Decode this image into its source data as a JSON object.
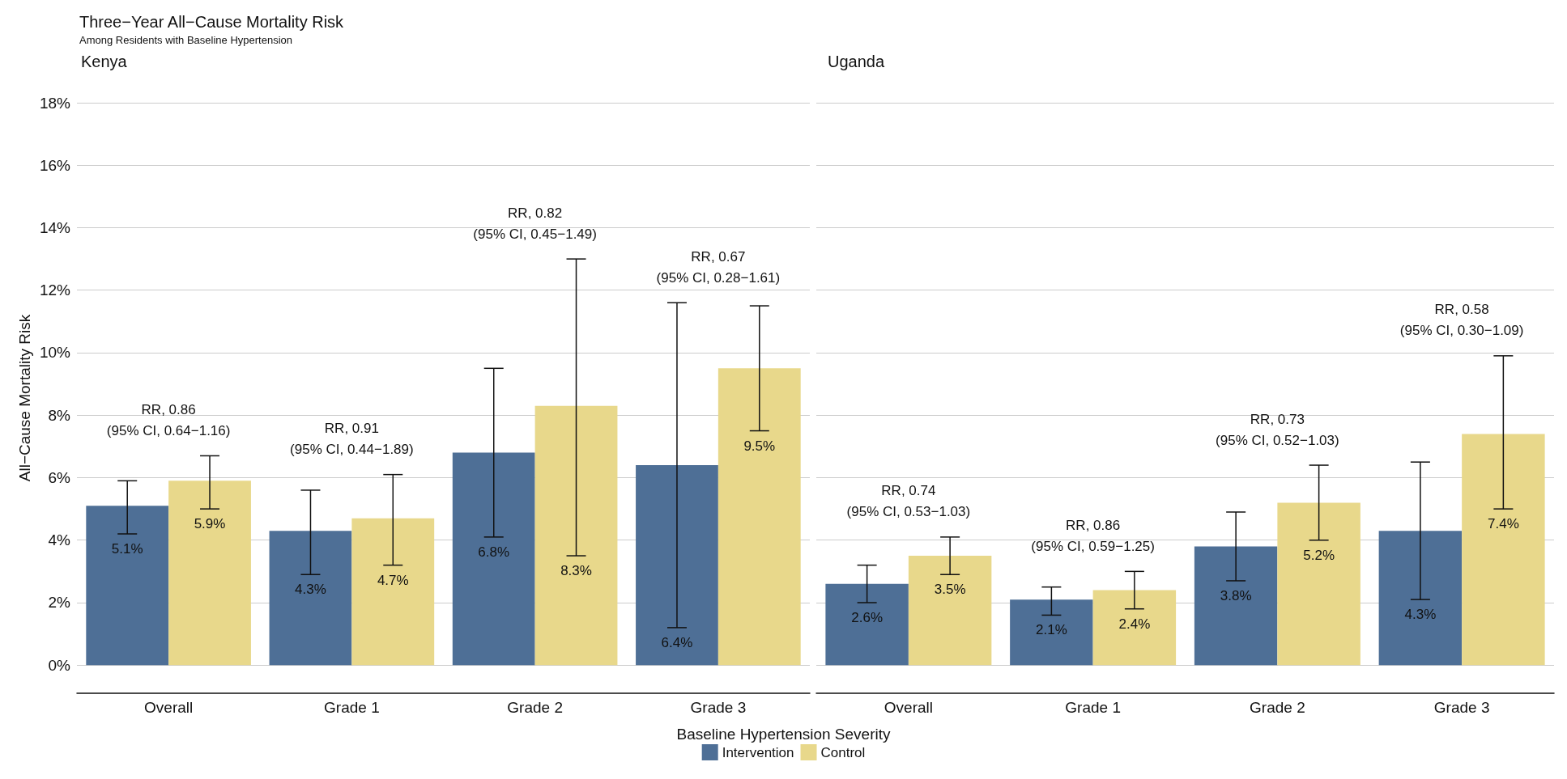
{
  "chart_data": [
    {
      "type": "bar",
      "title": "Three−Year All−Cause Mortality Risk",
      "subtitle": "Among Residents with Baseline Hypertension",
      "ylabel": "All−Cause Mortality Risk",
      "xlabel": "Baseline Hypertension Severity",
      "categories": [
        "Overall",
        "Grade 1",
        "Grade 2",
        "Grade 3"
      ],
      "series": [
        {
          "name": "Intervention",
          "color": "#4e6f96",
          "values": [
            5.1,
            4.3,
            6.8,
            6.4
          ],
          "value_labels": [
            "5.1%",
            "4.3%",
            "6.8%",
            "6.4%"
          ],
          "errors": [
            [
              4.2,
              5.9
            ],
            [
              2.9,
              5.6
            ],
            [
              4.1,
              9.5
            ],
            [
              1.2,
              11.6
            ]
          ]
        },
        {
          "name": "Control",
          "color": "#e8d88b",
          "values": [
            5.9,
            4.7,
            8.3,
            9.5
          ],
          "value_labels": [
            "5.9%",
            "4.7%",
            "8.3%",
            "9.5%"
          ],
          "errors": [
            [
              5.0,
              6.7
            ],
            [
              3.2,
              6.1
            ],
            [
              3.5,
              13.0
            ],
            [
              7.5,
              11.5
            ]
          ]
        }
      ],
      "ylim": [
        -0.9,
        18
      ],
      "yticks": [
        {
          "value": 0,
          "label": "0%"
        },
        {
          "value": 2,
          "label": "2%"
        },
        {
          "value": 4,
          "label": "4%"
        },
        {
          "value": 6,
          "label": "6%"
        },
        {
          "value": 8,
          "label": "8%"
        },
        {
          "value": 10,
          "label": "10%"
        },
        {
          "value": 12,
          "label": "12%"
        },
        {
          "value": 14,
          "label": "14%"
        },
        {
          "value": 16,
          "label": "16%"
        },
        {
          "value": 18,
          "label": "18%"
        }
      ],
      "grid": "y",
      "legend": "bottom",
      "annotations": [
        "Kenya",
        "RR, 0.86\n(95% CI, 0.64−1.16)",
        "RR, 0.91\n(95% CI, 0.44−1.89)",
        "RR, 0.82\n(95% CI, 0.45−1.49)",
        "RR, 0.67\n(95% CI, 0.28−1.61)"
      ]
    },
    {
      "type": "bar",
      "categories": [
        "Overall",
        "Grade 1",
        "Grade 2",
        "Grade 3"
      ],
      "series": [
        {
          "color": "#4e6f96",
          "values": [
            2.6,
            2.1,
            3.8,
            4.3
          ],
          "value_labels": [
            "2.6%",
            "2.1%",
            "3.8%",
            "4.3%"
          ],
          "errors": [
            [
              2.0,
              3.2
            ],
            [
              1.6,
              2.5
            ],
            [
              2.7,
              4.9
            ],
            [
              2.1,
              6.5
            ]
          ]
        },
        {
          "color": "#e8d88b",
          "values": [
            3.5,
            2.4,
            5.2,
            7.4
          ],
          "value_labels": [
            "3.5%",
            "2.4%",
            "5.2%",
            "7.4%"
          ],
          "errors": [
            [
              2.9,
              4.1
            ],
            [
              1.8,
              3.0
            ],
            [
              4.0,
              6.4
            ],
            [
              5.0,
              9.9
            ]
          ]
        }
      ],
      "ylim": [
        -0.9,
        18
      ],
      "yticks": [
        0,
        2,
        4,
        6,
        8,
        10,
        12,
        14,
        16,
        18
      ],
      "tick_labels": "x",
      "grid": "y",
      "annotations": [
        "Uganda",
        "RR, 0.74\n(95% CI, 0.53−1.03)",
        "RR, 0.86\n(95% CI, 0.59−1.25)",
        "RR, 0.73\n(95% CI, 0.52−1.03)",
        "RR, 0.58\n(95% CI, 0.30−1.09)"
      ]
    }
  ]
}
